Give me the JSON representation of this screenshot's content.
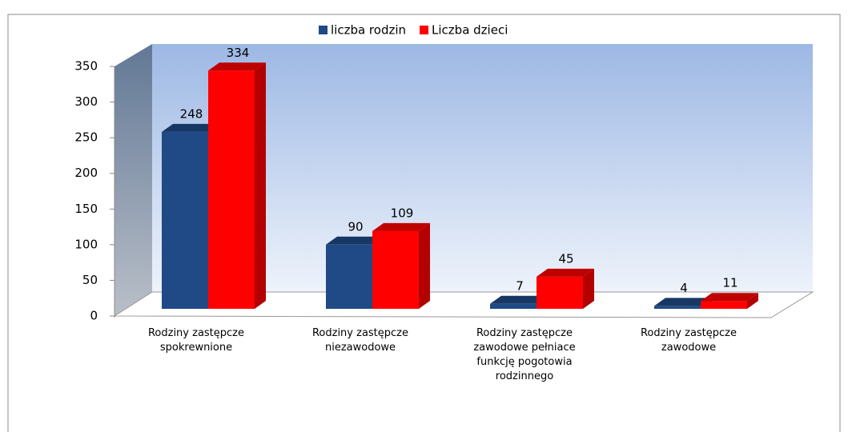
{
  "chart_data": {
    "type": "bar3d",
    "categories": [
      "Rodziny zastępcze spokrewnione",
      "Rodziny zastępcze niezawodowe",
      "Rodziny zastępcze zawodowe pełniace funkcję pogotowia rodzinnego",
      "Rodziny zastępcze zawodowe"
    ],
    "series": [
      {
        "name": "liczba rodzin",
        "color": "#1f4a86",
        "values": [
          248,
          90,
          7,
          4
        ]
      },
      {
        "name": "Liczba dzieci",
        "color": "#ff0000",
        "values": [
          334,
          109,
          45,
          11
        ]
      }
    ],
    "ylim": [
      0,
      350
    ],
    "yticks": [
      0,
      50,
      100,
      150,
      200,
      250,
      300,
      350
    ],
    "legend": "top",
    "data_labels": true
  }
}
